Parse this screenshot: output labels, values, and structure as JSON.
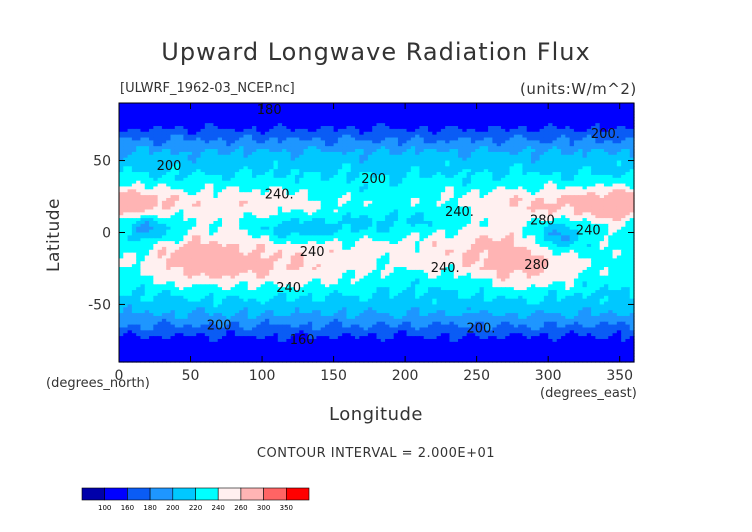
{
  "chart_data": {
    "type": "heatmap",
    "title": "Upward Longwave Radiation Flux",
    "file_label": "[ULWRF_1962-03_NCEP.nc]",
    "units_label": "(units:W/m^2)",
    "xlabel": "Longitude",
    "ylabel": "Latitude",
    "x_unit": "(degrees_east)",
    "y_unit": "(degrees_north)",
    "xlim": [
      0,
      360
    ],
    "ylim": [
      -90,
      90
    ],
    "x_ticks": [
      0,
      50,
      100,
      150,
      200,
      250,
      300,
      350
    ],
    "y_ticks": [
      50,
      0,
      -50
    ],
    "contour_interval_text": "CONTOUR INTERVAL = 2.000E+01",
    "contour_labels": [
      {
        "text": "180",
        "x": 105,
        "y": 86
      },
      {
        "text": "200",
        "x": 35,
        "y": 47
      },
      {
        "text": "200",
        "x": 178,
        "y": 38
      },
      {
        "text": "200.",
        "x": 340,
        "y": 69
      },
      {
        "text": "240.",
        "x": 112,
        "y": 27
      },
      {
        "text": "240.",
        "x": 238,
        "y": 15
      },
      {
        "text": "280",
        "x": 296,
        "y": 9
      },
      {
        "text": "240",
        "x": 328,
        "y": 2
      },
      {
        "text": "240",
        "x": 135,
        "y": -13
      },
      {
        "text": "240.",
        "x": 228,
        "y": -24
      },
      {
        "text": "280",
        "x": 292,
        "y": -22
      },
      {
        "text": "240.",
        "x": 120,
        "y": -38
      },
      {
        "text": "200",
        "x": 70,
        "y": -64
      },
      {
        "text": "200.",
        "x": 253,
        "y": -66
      },
      {
        "text": "160",
        "x": 128,
        "y": -74
      }
    ],
    "colorbar": {
      "levels": [
        100,
        160,
        180,
        200,
        220,
        240,
        260,
        300,
        350
      ],
      "colors": [
        "#0000aa",
        "#0000ff",
        "#0a5cf5",
        "#1e96ff",
        "#00c8ff",
        "#00ffff",
        "#fff0f0",
        "#ffb4b4",
        "#ff6464",
        "#ff0000"
      ]
    }
  }
}
